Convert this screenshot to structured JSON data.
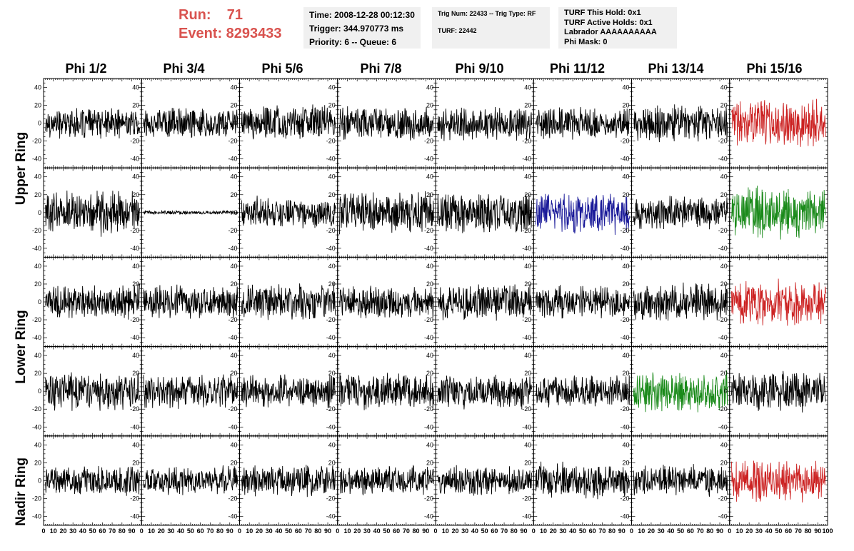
{
  "header": {
    "run_label": "Run:    71",
    "event_label": "Event: 8293433"
  },
  "info": {
    "time": "Time: 2008-12-28 00:12:30",
    "trigger": "Trigger: 344.970773 ms",
    "priority": "Priority: 6 -- Queue: 6",
    "trig_num": "Trig Num: 22433 -- Trig Type: RF",
    "turf": "TURF: 22442",
    "turf_hold": "TURF This Hold: 0x1",
    "turf_active": "TURF Active Holds: 0x1",
    "labrador": "Labrador AAAAAAAAAA",
    "phi_mask": "Phi Mask: 0"
  },
  "columns": [
    "Phi 1/2",
    "Phi 3/4",
    "Phi 5/6",
    "Phi 7/8",
    "Phi 9/10",
    "Phi 11/12",
    "Phi 13/14",
    "Phi 15/16"
  ],
  "rings": [
    "Upper Ring",
    "Lower Ring",
    "Nadir Ring"
  ],
  "colors": {
    "black": "#000000",
    "red": "#cc2222",
    "blue": "#1a1a99",
    "green": "#1a8a1a"
  },
  "chart_data": {
    "type": "line",
    "rows": 5,
    "cols": 8,
    "xlim": [
      0,
      100
    ],
    "ylim": [
      -50,
      50
    ],
    "x_ticks": [
      0,
      10,
      20,
      30,
      40,
      50,
      60,
      70,
      80,
      90,
      100
    ],
    "y_ticks": [
      -40,
      -20,
      0,
      20,
      40
    ],
    "x_tick_labels": [
      "0",
      "10",
      "20",
      "30",
      "40",
      "50",
      "60",
      "70",
      "80",
      "90",
      "100"
    ],
    "y_tick_labels": [
      "-40",
      "-20",
      "0",
      "20",
      "40"
    ],
    "panels": [
      {
        "row": 0,
        "col": 0,
        "color": "black",
        "amp": 16
      },
      {
        "row": 0,
        "col": 1,
        "color": "black",
        "amp": 17
      },
      {
        "row": 0,
        "col": 2,
        "color": "black",
        "amp": 19
      },
      {
        "row": 0,
        "col": 3,
        "color": "black",
        "amp": 18
      },
      {
        "row": 0,
        "col": 4,
        "color": "black",
        "amp": 19
      },
      {
        "row": 0,
        "col": 5,
        "color": "black",
        "amp": 18
      },
      {
        "row": 0,
        "col": 6,
        "color": "black",
        "amp": 19
      },
      {
        "row": 0,
        "col": 7,
        "color": "red",
        "amp": 26
      },
      {
        "row": 1,
        "col": 0,
        "color": "black",
        "amp": 24
      },
      {
        "row": 1,
        "col": 1,
        "color": "black",
        "amp": 2
      },
      {
        "row": 1,
        "col": 2,
        "color": "black",
        "amp": 17
      },
      {
        "row": 1,
        "col": 3,
        "color": "black",
        "amp": 22
      },
      {
        "row": 1,
        "col": 4,
        "color": "black",
        "amp": 22
      },
      {
        "row": 1,
        "col": 5,
        "color": "blue",
        "amp": 22
      },
      {
        "row": 1,
        "col": 6,
        "color": "black",
        "amp": 18
      },
      {
        "row": 1,
        "col": 7,
        "color": "green",
        "amp": 28
      },
      {
        "row": 2,
        "col": 0,
        "color": "black",
        "amp": 18
      },
      {
        "row": 2,
        "col": 1,
        "color": "black",
        "amp": 18
      },
      {
        "row": 2,
        "col": 2,
        "color": "black",
        "amp": 20
      },
      {
        "row": 2,
        "col": 3,
        "color": "black",
        "amp": 18
      },
      {
        "row": 2,
        "col": 4,
        "color": "black",
        "amp": 19
      },
      {
        "row": 2,
        "col": 5,
        "color": "black",
        "amp": 18
      },
      {
        "row": 2,
        "col": 6,
        "color": "black",
        "amp": 20
      },
      {
        "row": 2,
        "col": 7,
        "color": "red",
        "amp": 24
      },
      {
        "row": 3,
        "col": 0,
        "color": "black",
        "amp": 21
      },
      {
        "row": 3,
        "col": 1,
        "color": "black",
        "amp": 18
      },
      {
        "row": 3,
        "col": 2,
        "color": "black",
        "amp": 17
      },
      {
        "row": 3,
        "col": 3,
        "color": "black",
        "amp": 19
      },
      {
        "row": 3,
        "col": 4,
        "color": "black",
        "amp": 19
      },
      {
        "row": 3,
        "col": 5,
        "color": "black",
        "amp": 17
      },
      {
        "row": 3,
        "col": 6,
        "color": "green",
        "amp": 22
      },
      {
        "row": 3,
        "col": 7,
        "color": "black",
        "amp": 21
      },
      {
        "row": 4,
        "col": 0,
        "color": "black",
        "amp": 16
      },
      {
        "row": 4,
        "col": 1,
        "color": "black",
        "amp": 15
      },
      {
        "row": 4,
        "col": 2,
        "color": "black",
        "amp": 17
      },
      {
        "row": 4,
        "col": 3,
        "color": "black",
        "amp": 16
      },
      {
        "row": 4,
        "col": 4,
        "color": "black",
        "amp": 16
      },
      {
        "row": 4,
        "col": 5,
        "color": "black",
        "amp": 19
      },
      {
        "row": 4,
        "col": 6,
        "color": "black",
        "amp": 17
      },
      {
        "row": 4,
        "col": 7,
        "color": "red",
        "amp": 23
      }
    ]
  }
}
